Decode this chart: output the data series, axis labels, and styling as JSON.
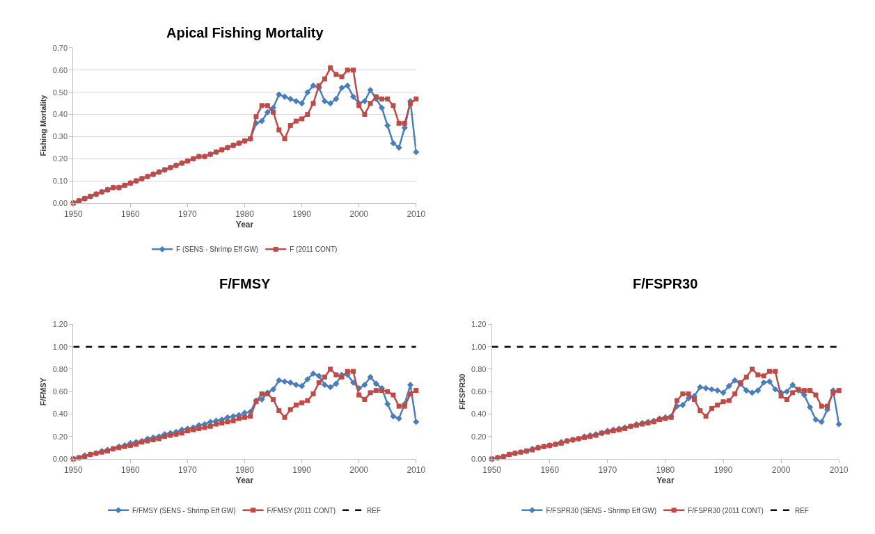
{
  "chart_data": [
    {
      "type": "line",
      "title": "Apical Fishing Mortality",
      "xlabel": "Year",
      "ylabel": "Fishing Mortality",
      "x": [
        1950,
        1951,
        1952,
        1953,
        1954,
        1955,
        1956,
        1957,
        1958,
        1959,
        1960,
        1961,
        1962,
        1963,
        1964,
        1965,
        1966,
        1967,
        1968,
        1969,
        1970,
        1971,
        1972,
        1973,
        1974,
        1975,
        1976,
        1977,
        1978,
        1979,
        1980,
        1981,
        1982,
        1983,
        1984,
        1985,
        1986,
        1987,
        1988,
        1989,
        1990,
        1991,
        1992,
        1993,
        1994,
        1995,
        1996,
        1997,
        1998,
        1999,
        2000,
        2001,
        2002,
        2003,
        2004,
        2005,
        2006,
        2007,
        2008,
        2009,
        2010
      ],
      "series": [
        {
          "name": "F (SENS - Shrimp Eff GW)",
          "color": "#4a7ebb",
          "marker": "diamond",
          "values": [
            0.0,
            0.01,
            0.02,
            0.03,
            0.04,
            0.05,
            0.06,
            0.07,
            0.07,
            0.08,
            0.09,
            0.1,
            0.11,
            0.12,
            0.13,
            0.14,
            0.15,
            0.16,
            0.17,
            0.18,
            0.19,
            0.2,
            0.21,
            0.21,
            0.22,
            0.23,
            0.24,
            0.25,
            0.26,
            0.27,
            0.28,
            0.29,
            0.36,
            0.37,
            0.41,
            0.43,
            0.49,
            0.48,
            0.47,
            0.46,
            0.45,
            0.5,
            0.53,
            0.52,
            0.46,
            0.45,
            0.47,
            0.52,
            0.53,
            0.48,
            0.45,
            0.46,
            0.51,
            0.47,
            0.43,
            0.35,
            0.27,
            0.25,
            0.34,
            0.46,
            0.23
          ]
        },
        {
          "name": "F (2011 CONT)",
          "color": "#be4b48",
          "marker": "square",
          "values": [
            0.0,
            0.01,
            0.02,
            0.03,
            0.04,
            0.05,
            0.06,
            0.07,
            0.07,
            0.08,
            0.09,
            0.1,
            0.11,
            0.12,
            0.13,
            0.14,
            0.15,
            0.16,
            0.17,
            0.18,
            0.19,
            0.2,
            0.21,
            0.21,
            0.22,
            0.23,
            0.24,
            0.25,
            0.26,
            0.27,
            0.28,
            0.29,
            0.39,
            0.44,
            0.44,
            0.41,
            0.33,
            0.29,
            0.35,
            0.37,
            0.38,
            0.4,
            0.45,
            0.53,
            0.56,
            0.61,
            0.58,
            0.57,
            0.6,
            0.6,
            0.44,
            0.4,
            0.45,
            0.48,
            0.47,
            0.47,
            0.44,
            0.36,
            0.36,
            0.45,
            0.47
          ]
        }
      ],
      "xlim": [
        1950,
        2010
      ],
      "xticks": [
        1950,
        1960,
        1970,
        1980,
        1990,
        2000,
        2010
      ],
      "ylim": [
        0,
        0.7
      ],
      "yticks": [
        {
          "value": 0,
          "label": "0.00"
        },
        {
          "value": 0.1,
          "label": "0.10"
        },
        {
          "value": 0.2,
          "label": "0.20"
        },
        {
          "value": 0.3,
          "label": "0.30"
        },
        {
          "value": 0.4,
          "label": "0.40"
        },
        {
          "value": 0.5,
          "label": "0.50"
        },
        {
          "value": 0.6,
          "label": "0.60"
        },
        {
          "value": 0.7,
          "label": "0.70"
        }
      ],
      "grid": "y",
      "legend": "bottom"
    },
    {
      "type": "line",
      "title": "F/FMSY",
      "xlabel": "Year",
      "ylabel": "F/FMSY",
      "x": [
        1950,
        1951,
        1952,
        1953,
        1954,
        1955,
        1956,
        1957,
        1958,
        1959,
        1960,
        1961,
        1962,
        1963,
        1964,
        1965,
        1966,
        1967,
        1968,
        1969,
        1970,
        1971,
        1972,
        1973,
        1974,
        1975,
        1976,
        1977,
        1978,
        1979,
        1980,
        1981,
        1982,
        1983,
        1984,
        1985,
        1986,
        1987,
        1988,
        1989,
        1990,
        1991,
        1992,
        1993,
        1994,
        1995,
        1996,
        1997,
        1998,
        1999,
        2000,
        2001,
        2002,
        2003,
        2004,
        2005,
        2006,
        2007,
        2008,
        2009,
        2010
      ],
      "series": [
        {
          "name": "F/FMSY (SENS - Shrimp Eff GW)",
          "color": "#4a7ebb",
          "marker": "diamond",
          "values": [
            0.0,
            0.01,
            0.03,
            0.04,
            0.05,
            0.07,
            0.08,
            0.09,
            0.11,
            0.12,
            0.14,
            0.15,
            0.16,
            0.18,
            0.19,
            0.2,
            0.22,
            0.23,
            0.24,
            0.26,
            0.27,
            0.28,
            0.3,
            0.31,
            0.33,
            0.34,
            0.35,
            0.37,
            0.38,
            0.39,
            0.41,
            0.42,
            0.52,
            0.53,
            0.59,
            0.62,
            0.7,
            0.69,
            0.68,
            0.66,
            0.65,
            0.71,
            0.76,
            0.74,
            0.66,
            0.64,
            0.67,
            0.75,
            0.75,
            0.68,
            0.63,
            0.66,
            0.73,
            0.67,
            0.63,
            0.49,
            0.38,
            0.36,
            0.49,
            0.66,
            0.33
          ]
        },
        {
          "name": "F/FMSY (2011 CONT)",
          "color": "#be4b48",
          "marker": "square",
          "values": [
            0.0,
            0.01,
            0.02,
            0.04,
            0.05,
            0.06,
            0.07,
            0.09,
            0.1,
            0.11,
            0.12,
            0.13,
            0.15,
            0.16,
            0.17,
            0.18,
            0.2,
            0.21,
            0.22,
            0.23,
            0.25,
            0.26,
            0.27,
            0.28,
            0.29,
            0.31,
            0.32,
            0.33,
            0.34,
            0.36,
            0.37,
            0.38,
            0.51,
            0.58,
            0.58,
            0.53,
            0.43,
            0.37,
            0.44,
            0.48,
            0.5,
            0.52,
            0.58,
            0.68,
            0.73,
            0.8,
            0.75,
            0.73,
            0.78,
            0.78,
            0.57,
            0.53,
            0.59,
            0.61,
            0.61,
            0.6,
            0.57,
            0.47,
            0.47,
            0.58,
            0.61
          ]
        },
        {
          "name": "REF",
          "color": "#000000",
          "marker": "none",
          "line_style": "dashed",
          "values": [
            1,
            1,
            1,
            1,
            1,
            1,
            1,
            1,
            1,
            1,
            1,
            1,
            1,
            1,
            1,
            1,
            1,
            1,
            1,
            1,
            1,
            1,
            1,
            1,
            1,
            1,
            1,
            1,
            1,
            1,
            1,
            1,
            1,
            1,
            1,
            1,
            1,
            1,
            1,
            1,
            1,
            1,
            1,
            1,
            1,
            1,
            1,
            1,
            1,
            1,
            1,
            1,
            1,
            1,
            1,
            1,
            1,
            1,
            1,
            1,
            1
          ]
        }
      ],
      "xlim": [
        1950,
        2010
      ],
      "xticks": [
        1950,
        1960,
        1970,
        1980,
        1990,
        2000,
        2010
      ],
      "ylim": [
        0,
        1.2
      ],
      "yticks": [
        {
          "value": 0,
          "label": "0.00"
        },
        {
          "value": 0.2,
          "label": "0.20"
        },
        {
          "value": 0.4,
          "label": "0.40"
        },
        {
          "value": 0.6,
          "label": "0.60"
        },
        {
          "value": 0.8,
          "label": "0.80"
        },
        {
          "value": 1.0,
          "label": "1.00"
        },
        {
          "value": 1.2,
          "label": "1.20"
        }
      ],
      "legend": "bottom"
    },
    {
      "type": "line",
      "title": "F/FSPR30",
      "xlabel": "Year",
      "ylabel": "F/FSPR30",
      "x": [
        1950,
        1951,
        1952,
        1953,
        1954,
        1955,
        1956,
        1957,
        1958,
        1959,
        1960,
        1961,
        1962,
        1963,
        1964,
        1965,
        1966,
        1967,
        1968,
        1969,
        1970,
        1971,
        1972,
        1973,
        1974,
        1975,
        1976,
        1977,
        1978,
        1979,
        1980,
        1981,
        1982,
        1983,
        1984,
        1985,
        1986,
        1987,
        1988,
        1989,
        1990,
        1991,
        1992,
        1993,
        1994,
        1995,
        1996,
        1997,
        1998,
        1999,
        2000,
        2001,
        2002,
        2003,
        2004,
        2005,
        2006,
        2007,
        2008,
        2009,
        2010
      ],
      "series": [
        {
          "name": "F/FSPR30 (SENS - Shrimp Eff GW)",
          "color": "#4a7ebb",
          "marker": "diamond",
          "values": [
            0.0,
            0.01,
            0.02,
            0.04,
            0.05,
            0.06,
            0.07,
            0.09,
            0.1,
            0.11,
            0.12,
            0.13,
            0.15,
            0.16,
            0.17,
            0.18,
            0.2,
            0.21,
            0.22,
            0.23,
            0.25,
            0.26,
            0.27,
            0.28,
            0.29,
            0.31,
            0.32,
            0.33,
            0.34,
            0.36,
            0.37,
            0.38,
            0.47,
            0.48,
            0.54,
            0.56,
            0.64,
            0.63,
            0.62,
            0.61,
            0.59,
            0.65,
            0.7,
            0.67,
            0.61,
            0.59,
            0.61,
            0.68,
            0.69,
            0.62,
            0.59,
            0.6,
            0.66,
            0.61,
            0.57,
            0.46,
            0.35,
            0.33,
            0.44,
            0.61,
            0.31
          ]
        },
        {
          "name": "F/FSPR30 (2011 CONT)",
          "color": "#be4b48",
          "marker": "square",
          "values": [
            0.0,
            0.01,
            0.02,
            0.04,
            0.05,
            0.06,
            0.07,
            0.08,
            0.1,
            0.11,
            0.12,
            0.13,
            0.14,
            0.16,
            0.17,
            0.18,
            0.19,
            0.2,
            0.21,
            0.23,
            0.24,
            0.25,
            0.26,
            0.27,
            0.29,
            0.3,
            0.31,
            0.32,
            0.33,
            0.35,
            0.36,
            0.37,
            0.52,
            0.58,
            0.58,
            0.53,
            0.43,
            0.38,
            0.45,
            0.48,
            0.51,
            0.52,
            0.58,
            0.68,
            0.73,
            0.8,
            0.75,
            0.74,
            0.78,
            0.78,
            0.56,
            0.53,
            0.59,
            0.62,
            0.61,
            0.61,
            0.57,
            0.47,
            0.47,
            0.59,
            0.61
          ]
        },
        {
          "name": "REF",
          "color": "#000000",
          "marker": "none",
          "line_style": "dashed",
          "values": [
            1,
            1,
            1,
            1,
            1,
            1,
            1,
            1,
            1,
            1,
            1,
            1,
            1,
            1,
            1,
            1,
            1,
            1,
            1,
            1,
            1,
            1,
            1,
            1,
            1,
            1,
            1,
            1,
            1,
            1,
            1,
            1,
            1,
            1,
            1,
            1,
            1,
            1,
            1,
            1,
            1,
            1,
            1,
            1,
            1,
            1,
            1,
            1,
            1,
            1,
            1,
            1,
            1,
            1,
            1,
            1,
            1,
            1,
            1,
            1,
            1
          ]
        }
      ],
      "xlim": [
        1950,
        2010
      ],
      "xticks": [
        1950,
        1960,
        1970,
        1980,
        1990,
        2000,
        2010
      ],
      "ylim": [
        0,
        1.2
      ],
      "yticks": [
        {
          "value": 0,
          "label": "0.00"
        },
        {
          "value": 0.2,
          "label": "0.20"
        },
        {
          "value": 0.4,
          "label": "0.40"
        },
        {
          "value": 0.6,
          "label": "0.60"
        },
        {
          "value": 0.8,
          "label": "0.80"
        },
        {
          "value": 1.0,
          "label": "1.00"
        },
        {
          "value": 1.2,
          "label": "1.20"
        }
      ],
      "legend": "bottom"
    }
  ]
}
